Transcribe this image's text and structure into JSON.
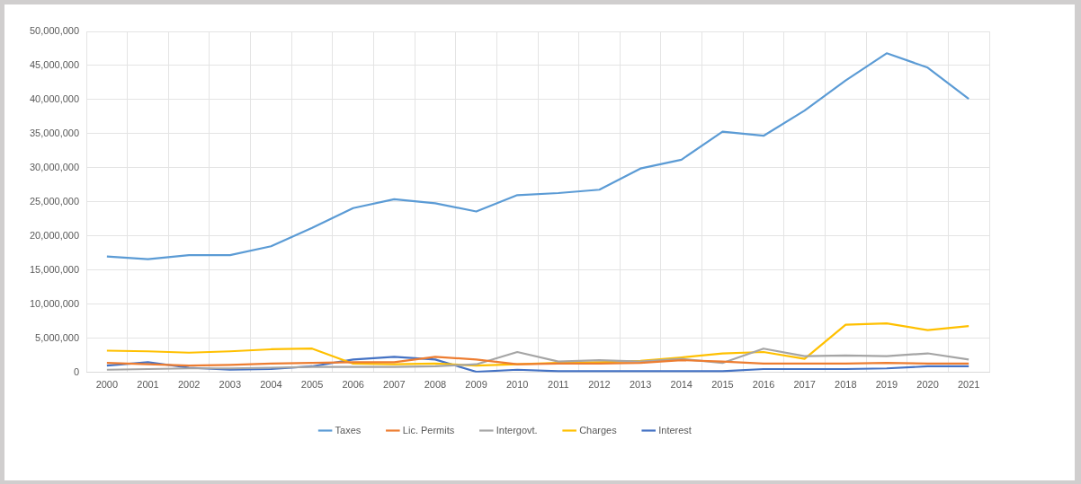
{
  "chart_data": {
    "type": "line",
    "categories": [
      "2000",
      "2001",
      "2002",
      "2003",
      "2004",
      "2005",
      "2006",
      "2007",
      "2008",
      "2009",
      "2010",
      "2011",
      "2012",
      "2013",
      "2014",
      "2015",
      "2016",
      "2017",
      "2018",
      "2019",
      "2020",
      "2021"
    ],
    "series": [
      {
        "name": "Taxes",
        "color": "#5b9bd5",
        "values": [
          17000000,
          16600000,
          17200000,
          17200000,
          18500000,
          21200000,
          24100000,
          25400000,
          24800000,
          23600000,
          26000000,
          26300000,
          26800000,
          29900000,
          31200000,
          35300000,
          34700000,
          38400000,
          42800000,
          46800000,
          44700000,
          40100000
        ]
      },
      {
        "name": "Lic. Permits",
        "color": "#ed7d31",
        "values": [
          1400000,
          1200000,
          1000000,
          1100000,
          1300000,
          1400000,
          1500000,
          1500000,
          2300000,
          1900000,
          1200000,
          1300000,
          1300000,
          1400000,
          1800000,
          1600000,
          1300000,
          1300000,
          1300000,
          1400000,
          1300000,
          1300000
        ]
      },
      {
        "name": "Intergovt.",
        "color": "#a5a5a5",
        "values": [
          400000,
          500000,
          600000,
          600000,
          700000,
          800000,
          800000,
          800000,
          900000,
          1200000,
          3000000,
          1600000,
          1800000,
          1600000,
          2000000,
          1400000,
          3500000,
          2400000,
          2500000,
          2400000,
          2800000,
          1900000
        ]
      },
      {
        "name": "Charges",
        "color": "#ffc000",
        "values": [
          3200000,
          3100000,
          2900000,
          3100000,
          3400000,
          3500000,
          1300000,
          1200000,
          1300000,
          1000000,
          1200000,
          1400000,
          1500000,
          1700000,
          2200000,
          2800000,
          3000000,
          2000000,
          7000000,
          7200000,
          6200000,
          6800000
        ]
      },
      {
        "name": "Interest",
        "color": "#4472c4",
        "values": [
          1000000,
          1500000,
          700000,
          400000,
          500000,
          900000,
          1900000,
          2300000,
          1900000,
          100000,
          400000,
          200000,
          200000,
          200000,
          200000,
          200000,
          500000,
          500000,
          500000,
          600000,
          900000,
          900000
        ]
      }
    ],
    "ylim": [
      0,
      50000000
    ],
    "yticks": [
      0,
      {
        "value": 5000000,
        "label": "5,000,000"
      },
      {
        "value": 10000000,
        "label": "10,000,000"
      },
      {
        "value": 15000000,
        "label": "15,000,000"
      },
      {
        "value": 20000000,
        "label": "20,000,000"
      },
      {
        "value": 25000000,
        "label": "25,000,000"
      },
      {
        "value": 30000000,
        "label": "30,000,000"
      },
      {
        "value": 35000000,
        "label": "35,000,000"
      },
      {
        "value": 40000000,
        "label": "40,000,000"
      },
      {
        "value": 45000000,
        "label": "45,000,000"
      },
      {
        "value": 50000000,
        "label": "50,000,000"
      }
    ],
    "grid": true,
    "legend": "bottom",
    "marker": "none",
    "line_style": "solid"
  }
}
